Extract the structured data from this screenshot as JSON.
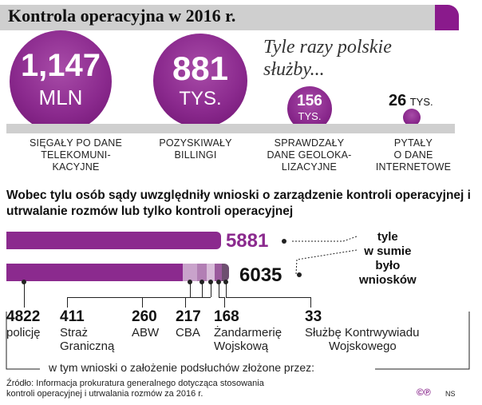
{
  "title": "Kontrola operacyjna w 2016 r.",
  "subtitle": "Tyle razy polskie służby...",
  "top_stats": [
    {
      "value": "1,147",
      "unit": "MLN",
      "label": [
        "SIĘGAŁY PO DANE",
        "TELEKOMUNI-",
        "KACYJNE"
      ]
    },
    {
      "value": "881",
      "unit": "TYS.",
      "label": [
        "POZYSKIWAŁY",
        "BILLINGI"
      ]
    },
    {
      "value": "156",
      "unit": "TYS.",
      "label": [
        "SPRAWDZAŁY",
        "DANE GEOLOKA-",
        "LIZACYJNE"
      ]
    },
    {
      "value": "26",
      "unit": "TYS.",
      "label": [
        "PYTAŁY",
        "O DANE",
        "INTERNETOWE"
      ]
    }
  ],
  "headline": "Wobec tylu osób sądy uwzględniły wnioski o zarządzenie kontroli operacyjnej i utrwalanie rozmów lub tylko kontroli operacyjnej",
  "chart_data": {
    "type": "bar",
    "bars": [
      {
        "total": 5881
      },
      {
        "total": 6035,
        "segments": [
          {
            "name": "policję",
            "value": 4822
          },
          {
            "name": "Straż Graniczną",
            "value": 411
          },
          {
            "name": "ABW",
            "value": 260
          },
          {
            "name": "CBA",
            "value": 217
          },
          {
            "name": "Żandarmerię Wojskową",
            "value": 168
          },
          {
            "name": "Służbę Kontrwywiadu Wojskowego",
            "value": 33
          }
        ]
      }
    ],
    "annotation": "tyle w sumie było wniosków"
  },
  "categories": [
    {
      "value": "4822",
      "name": [
        "policję"
      ]
    },
    {
      "value": "411",
      "name": [
        "Straż",
        "Graniczną"
      ]
    },
    {
      "value": "260",
      "name": [
        "ABW"
      ]
    },
    {
      "value": "217",
      "name": [
        "CBA"
      ]
    },
    {
      "value": "168",
      "name": [
        "Żandarmerię",
        "Wojskową"
      ]
    },
    {
      "value": "33",
      "name": [
        "Służbę Kontrwywiadu",
        "Wojskowego"
      ]
    }
  ],
  "annotation_lines": [
    "tyle",
    "w sumie",
    "było",
    "wniosków"
  ],
  "footer_note": "w tym wnioski o założenie podsłuchów złożone przez:",
  "source": [
    "Źródło: Informacja prokuratura generalnego dotycząca stosowania",
    "kontroli operacyjnej i utrwalania rozmów za 2016 r."
  ],
  "logo": "©℗",
  "author": "NS",
  "colors": {
    "accent": "#8b2a8e",
    "light": "#c9a3cb",
    "gray": "#cfcfcf"
  }
}
